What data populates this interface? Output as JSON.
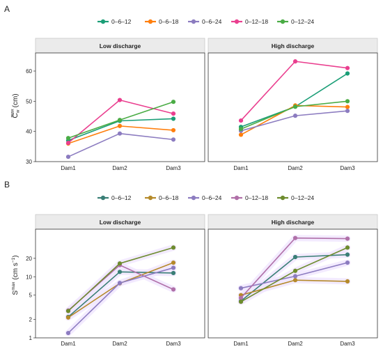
{
  "chart_data": [
    {
      "type": "line",
      "panel_label": "A",
      "ylabel": {
        "main": "C",
        "sup": "max",
        "sub": "w",
        "unit": "(cm)"
      },
      "yscale": "linear",
      "ylim": [
        30,
        66
      ],
      "yticks": [
        30,
        40,
        50,
        60
      ],
      "categories": [
        "Dam1",
        "Dam2",
        "Dam3"
      ],
      "legend": {
        "position": "top",
        "entries": [
          "0–6–12",
          "0–6–18",
          "0–6–24",
          "0–12–18",
          "0–12–24"
        ],
        "colors": [
          "#1b9e77",
          "#ff7f0e",
          "#8c7cc0",
          "#ea3f8f",
          "#4aac45"
        ]
      },
      "facets": [
        {
          "strip": "Low discharge",
          "series": [
            {
              "name": "0–6–12",
              "color": "#1b9e77",
              "values": [
                37,
                43.5,
                44.2
              ]
            },
            {
              "name": "0–6–18",
              "color": "#ff7f0e",
              "values": [
                36,
                41.8,
                40.4
              ]
            },
            {
              "name": "0–6–24",
              "color": "#8c7cc0",
              "values": [
                31.6,
                39.3,
                37.3
              ]
            },
            {
              "name": "0–12–18",
              "color": "#ea3f8f",
              "values": [
                36.2,
                50.4,
                45.9
              ]
            },
            {
              "name": "0–12–24",
              "color": "#4aac45",
              "values": [
                37.8,
                43.8,
                49.8
              ]
            }
          ]
        },
        {
          "strip": "High discharge",
          "series": [
            {
              "name": "0–6–12",
              "color": "#1b9e77",
              "values": [
                41.5,
                48.2,
                59.2
              ]
            },
            {
              "name": "0–6–18",
              "color": "#ff7f0e",
              "values": [
                38.9,
                48.6,
                48.1
              ]
            },
            {
              "name": "0–6–24",
              "color": "#8c7cc0",
              "values": [
                40.2,
                45.2,
                46.8
              ]
            },
            {
              "name": "0–12–18",
              "color": "#ea3f8f",
              "values": [
                43.6,
                63.2,
                61
              ]
            },
            {
              "name": "0–12–24",
              "color": "#4aac45",
              "values": [
                40.8,
                48.2,
                50
              ]
            }
          ]
        }
      ]
    },
    {
      "type": "line",
      "panel_label": "B",
      "ylabel": {
        "main": "S",
        "sup": "max",
        "unit": "(cm s",
        "unit_sup": "−1",
        "close": ")"
      },
      "yscale": "log",
      "ylim": [
        1,
        60
      ],
      "yticks": [
        1,
        2,
        5,
        10,
        20
      ],
      "categories": [
        "Dam1",
        "Dam2",
        "Dam3"
      ],
      "legend": {
        "position": "top",
        "entries": [
          "0–6–12",
          "0–6–18",
          "0–6–24",
          "0–12–18",
          "0–12–24"
        ],
        "colors": [
          "#3a7f76",
          "#b58a2a",
          "#8c7cc0",
          "#b070a8",
          "#6e8c2e"
        ]
      },
      "facets": [
        {
          "strip": "Low discharge",
          "series": [
            {
              "name": "0–6–12",
              "color": "#3a7f76",
              "values": [
                2.2,
                12,
                11.5
              ]
            },
            {
              "name": "0–6–18",
              "color": "#b58a2a",
              "values": [
                2.15,
                7.8,
                17
              ]
            },
            {
              "name": "0–6–24",
              "color": "#8c7cc0",
              "values": [
                1.2,
                7.9,
                14
              ]
            },
            {
              "name": "0–12–18",
              "color": "#b070a8",
              "values": [
                2.8,
                15.5,
                6.2
              ]
            },
            {
              "name": "0–12–24",
              "color": "#6e8c2e",
              "values": [
                2.75,
                16.5,
                30
              ]
            }
          ]
        },
        {
          "strip": "High discharge",
          "series": [
            {
              "name": "0–6–12",
              "color": "#3a7f76",
              "values": [
                4,
                21,
                23
              ]
            },
            {
              "name": "0–6–18",
              "color": "#b58a2a",
              "values": [
                5,
                8.8,
                8.4
              ]
            },
            {
              "name": "0–6–24",
              "color": "#8c7cc0",
              "values": [
                6.5,
                10.2,
                17
              ]
            },
            {
              "name": "0–12–18",
              "color": "#b070a8",
              "values": [
                4.5,
                43,
                42
              ]
            },
            {
              "name": "0–12–24",
              "color": "#6e8c2e",
              "values": [
                3.9,
                12.5,
                30
              ]
            }
          ]
        }
      ]
    }
  ]
}
